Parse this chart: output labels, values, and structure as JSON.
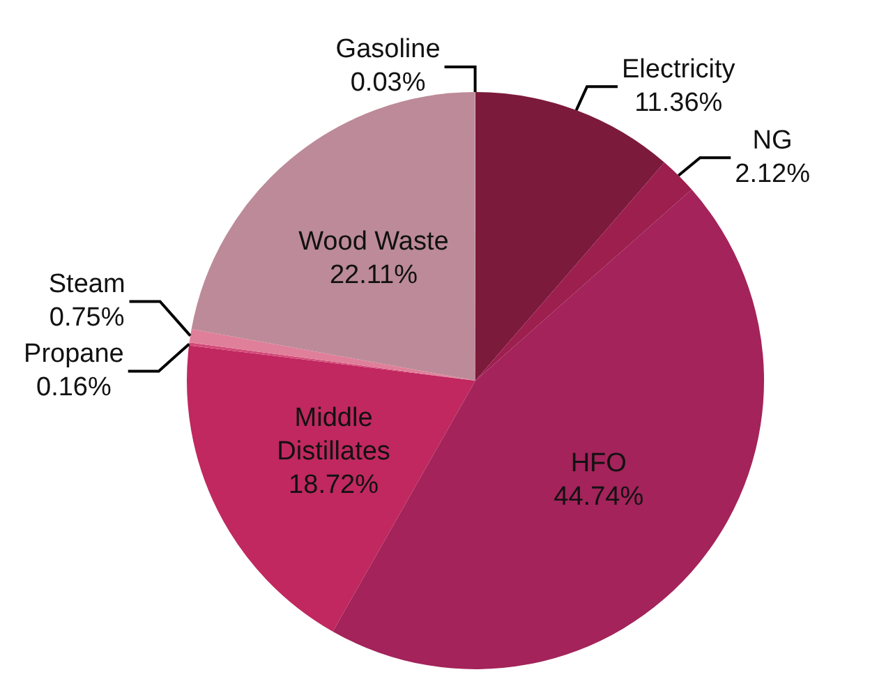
{
  "chart_data": {
    "type": "pie",
    "categories": [
      "Electricity",
      "NG",
      "HFO",
      "Middle Distillates",
      "Propane",
      "Steam",
      "Wood Waste",
      "Gasoline"
    ],
    "values": [
      11.36,
      2.12,
      44.74,
      18.72,
      0.16,
      0.75,
      22.11,
      0.03
    ],
    "value_labels": [
      "11.36%",
      "2.12%",
      "44.74%",
      "18.72%",
      "0.16%",
      "0.75%",
      "22.11%",
      "0.03%"
    ],
    "colors": [
      "#7c1a3c",
      "#9c1f4e",
      "#a3235a",
      "#c0285f",
      "#d44a78",
      "#e07f9a",
      "#bc8a98",
      "#d8a2b2"
    ],
    "legend": false
  }
}
